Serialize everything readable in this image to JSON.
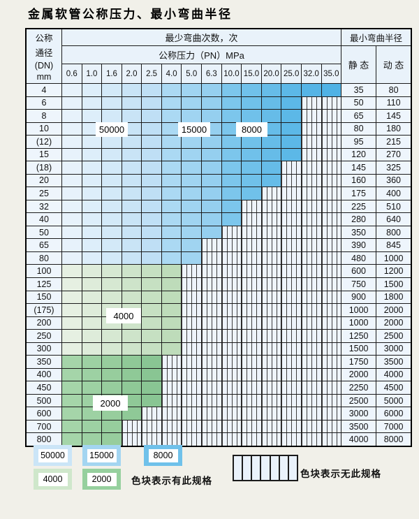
{
  "title": "金属软管公称压力、最小弯曲半径",
  "table": {
    "corner_lines": [
      "公称",
      "通径",
      "(DN)",
      "mm"
    ],
    "bend_header": "最少弯曲次数，次",
    "pressure_header": "公称压力（PN）MPa",
    "radius_header": "最小弯曲半径",
    "static_label": "静 态",
    "dynamic_label": "动 态",
    "pressure_ticks": [
      "0.6",
      "1.0",
      "1.6",
      "2.0",
      "2.5",
      "4.0",
      "5.0",
      "6.3",
      "10.0",
      "15.0",
      "20.0",
      "25.0",
      "32.0",
      "35.0"
    ],
    "rows": [
      {
        "dn": "4",
        "colored_cols": 14,
        "through": "35.0",
        "shade": "blue",
        "static": "35",
        "dynamic": "80"
      },
      {
        "dn": "6",
        "colored_cols": 12,
        "through": "25.0",
        "shade": "blue",
        "static": "50",
        "dynamic": "110"
      },
      {
        "dn": "8",
        "colored_cols": 12,
        "through": "25.0",
        "shade": "blue",
        "static": "65",
        "dynamic": "145"
      },
      {
        "dn": "10",
        "colored_cols": 12,
        "through": "25.0",
        "shade": "blue",
        "static": "80",
        "dynamic": "180"
      },
      {
        "dn": "(12)",
        "colored_cols": 12,
        "through": "25.0",
        "shade": "blue",
        "static": "95",
        "dynamic": "215"
      },
      {
        "dn": "15",
        "colored_cols": 12,
        "through": "25.0",
        "shade": "blue",
        "static": "120",
        "dynamic": "270"
      },
      {
        "dn": "(18)",
        "colored_cols": 11,
        "through": "20.0",
        "shade": "blue",
        "static": "145",
        "dynamic": "325"
      },
      {
        "dn": "20",
        "colored_cols": 11,
        "through": "20.0",
        "shade": "blue",
        "static": "160",
        "dynamic": "360"
      },
      {
        "dn": "25",
        "colored_cols": 10,
        "through": "15.0",
        "shade": "blue",
        "static": "175",
        "dynamic": "400"
      },
      {
        "dn": "32",
        "colored_cols": 9,
        "through": "10.0",
        "shade": "blue",
        "static": "225",
        "dynamic": "510"
      },
      {
        "dn": "40",
        "colored_cols": 9,
        "through": "10.0",
        "shade": "blue",
        "static": "280",
        "dynamic": "640"
      },
      {
        "dn": "50",
        "colored_cols": 8,
        "through": "6.3",
        "shade": "blue",
        "static": "350",
        "dynamic": "800"
      },
      {
        "dn": "65",
        "colored_cols": 7,
        "through": "5.0",
        "shade": "blue",
        "static": "390",
        "dynamic": "845"
      },
      {
        "dn": "80",
        "colored_cols": 7,
        "through": "5.0",
        "shade": "blue",
        "static": "480",
        "dynamic": "1000"
      },
      {
        "dn": "100",
        "colored_cols": 6,
        "through": "4.0",
        "shade": "green_light",
        "static": "600",
        "dynamic": "1200"
      },
      {
        "dn": "125",
        "colored_cols": 6,
        "through": "4.0",
        "shade": "green_light",
        "static": "750",
        "dynamic": "1500"
      },
      {
        "dn": "150",
        "colored_cols": 6,
        "through": "4.0",
        "shade": "green_light",
        "static": "900",
        "dynamic": "1800"
      },
      {
        "dn": "(175)",
        "colored_cols": 6,
        "through": "4.0",
        "shade": "green_light",
        "static": "1000",
        "dynamic": "2000"
      },
      {
        "dn": "200",
        "colored_cols": 6,
        "through": "4.0",
        "shade": "green_light",
        "static": "1000",
        "dynamic": "2000"
      },
      {
        "dn": "250",
        "colored_cols": 6,
        "through": "4.0",
        "shade": "green_light",
        "static": "1250",
        "dynamic": "2500"
      },
      {
        "dn": "300",
        "colored_cols": 6,
        "through": "4.0",
        "shade": "green_light",
        "static": "1500",
        "dynamic": "3000"
      },
      {
        "dn": "350",
        "colored_cols": 5,
        "through": "2.5",
        "shade": "green_dark",
        "static": "1750",
        "dynamic": "3500"
      },
      {
        "dn": "400",
        "colored_cols": 5,
        "through": "2.5",
        "shade": "green_dark",
        "static": "2000",
        "dynamic": "4000"
      },
      {
        "dn": "450",
        "colored_cols": 5,
        "through": "2.5",
        "shade": "green_dark",
        "static": "2250",
        "dynamic": "4500"
      },
      {
        "dn": "500",
        "colored_cols": 5,
        "through": "2.5",
        "shade": "green_dark",
        "static": "2500",
        "dynamic": "5000"
      },
      {
        "dn": "600",
        "colored_cols": 4,
        "through": "2.0",
        "shade": "green_dark",
        "static": "3000",
        "dynamic": "6000"
      },
      {
        "dn": "700",
        "colored_cols": 3,
        "through": "1.6",
        "shade": "green_dark",
        "static": "3500",
        "dynamic": "7000"
      },
      {
        "dn": "800",
        "colored_cols": 3,
        "through": "1.6",
        "shade": "green_dark",
        "static": "4000",
        "dynamic": "8000"
      }
    ]
  },
  "overlays": [
    {
      "label": "50000"
    },
    {
      "label": "15000"
    },
    {
      "label": "8000"
    },
    {
      "label": "4000"
    },
    {
      "label": "2000"
    }
  ],
  "legend": {
    "chips": [
      {
        "label": "50000",
        "color": "#cbe5f7"
      },
      {
        "label": "15000",
        "color": "#a3d5f1"
      },
      {
        "label": "8000",
        "color": "#6fc1ea"
      },
      {
        "label": "4000",
        "color": "#cfe7cb"
      },
      {
        "label": "2000",
        "color": "#96d09e"
      }
    ],
    "has_spec_text": "色块表示有此规格",
    "no_spec_text": "色块表示无此规格",
    "no_spec_cells": 7
  },
  "colors": {
    "page_bg": "#f1f0e9",
    "header_bg": "#e9f2fa",
    "label_cell_bg": "#eef5fc",
    "grid_line": "#1b1b1b",
    "hatch_bg": "#eef4fb",
    "hatch_line": "#3d3d3d",
    "blue_ramp": [
      "#e7f2fb",
      "#ddeefa",
      "#d3e9f8",
      "#c9e4f6",
      "#bfdff5",
      "#abd9f3",
      "#a0d4f1",
      "#95cfef",
      "#7cc6ec",
      "#70c1ea",
      "#66bce8",
      "#5cb8e7",
      "#55b4e6",
      "#50b2e5"
    ],
    "green_light_ramp": [
      "#e6f0e2",
      "#deecda",
      "#d6e8d2",
      "#cee4ca",
      "#c6e0c2",
      "#bedcba"
    ],
    "green_dark_ramp": [
      "#a5d5a9",
      "#9dd1a3",
      "#97cd9d",
      "#8fc997",
      "#89c593"
    ]
  }
}
